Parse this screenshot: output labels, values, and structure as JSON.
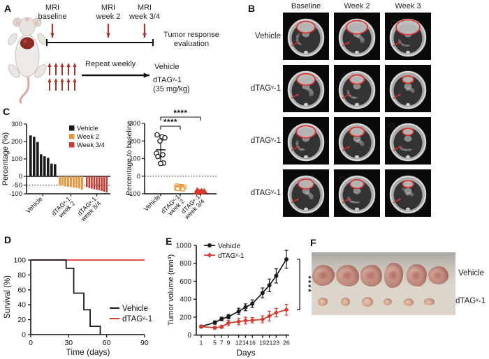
{
  "colors": {
    "text": "#1a1a1a",
    "vehicle_black": "#1a1a1a",
    "week2_orange": "#E8973B",
    "week34_red": "#C43D32",
    "dtag_red": "#D6372E",
    "survival_red": "#E03A2F",
    "schematic_arrow_red": "#A6342C",
    "mri_outline_red": "#E03131"
  },
  "panel_a": {
    "label": "A",
    "mri_timepoints": [
      [
        "MRI",
        "baseline"
      ],
      [
        "MRI",
        "week 2"
      ],
      [
        "MRI",
        "week 3/4"
      ]
    ],
    "evaluation_line1": "Tumor response",
    "evaluation_line2": "evaluation",
    "repeat_label": "Repeat weekly",
    "treatments": [
      "Vehicle",
      "dTAGᵛ-1"
    ],
    "dose": "(35 mg/kg)"
  },
  "panel_b": {
    "label": "B",
    "col_headers": [
      "Baseline",
      "Week 2",
      "Week 3"
    ],
    "rows": [
      {
        "label": "Vehicle",
        "tumor_scales": [
          1.0,
          1.15,
          1.3
        ]
      },
      {
        "label": "dTAGᵛ-1",
        "tumor_scales": [
          1.0,
          0.8,
          0.62
        ]
      },
      {
        "label": "dTAGᵛ-1",
        "tumor_scales": [
          1.05,
          0.8,
          0.6
        ]
      },
      {
        "label": "dTAGᵛ-1",
        "tumor_scales": [
          0.85,
          0.75,
          0.6
        ]
      }
    ]
  },
  "panel_c": {
    "label": "C"
  },
  "panel_d": {
    "label": "D"
  },
  "panel_e": {
    "label": "E"
  },
  "panel_f": {
    "label": "F",
    "row_labels": [
      "Vehicle",
      "dTAGᵛ-1"
    ],
    "large_tumors": [
      [
        32,
        30
      ],
      [
        33,
        31
      ],
      [
        31,
        31
      ],
      [
        27,
        36
      ],
      [
        29,
        32
      ],
      [
        29,
        26
      ]
    ],
    "small_tumors": [
      [
        14,
        12
      ],
      [
        13,
        12
      ],
      [
        16,
        14
      ],
      [
        12,
        10
      ],
      [
        14,
        11
      ],
      [
        15,
        10
      ]
    ]
  },
  "chart_data": [
    {
      "id": "waterfall",
      "type": "bar",
      "ylabel": "Percentage (%)",
      "ylim": [
        -100,
        300
      ],
      "yticks": [
        300,
        200,
        100,
        0,
        -50,
        -100
      ],
      "reference_line": -50,
      "grid": false,
      "legend_position": "inside-top-right",
      "legend": [
        {
          "label": "Vehicle",
          "color": "#1a1a1a"
        },
        {
          "label": "Week 2",
          "color": "#E8973B"
        },
        {
          "label": "Week 3/4",
          "color": "#C43D32"
        }
      ],
      "groups": [
        {
          "label": [
            "Vehicle"
          ],
          "color": "#1a1a1a",
          "values": [
            235,
            227,
            197,
            127,
            115,
            106,
            73,
            70
          ]
        },
        {
          "label": [
            "dTAGᵛ-1",
            "week 2"
          ],
          "color": "#E8973B",
          "values": [
            -52,
            -55,
            -58,
            -60,
            -62,
            -64,
            -66,
            -69,
            -76
          ]
        },
        {
          "label": [
            "dTAGᵛ-1",
            "week 3/4"
          ],
          "color": "#C43D32",
          "values": [
            -60,
            -67,
            -71,
            -74,
            -77,
            -80,
            -84,
            -88,
            -93
          ]
        }
      ]
    },
    {
      "id": "response-scatter",
      "type": "scatter",
      "ylabel": "Percentage to baseline",
      "ylim": [
        -100,
        300
      ],
      "yticks": [
        300,
        200,
        100,
        0,
        -100
      ],
      "reference_line": 0,
      "groups": [
        {
          "label": [
            "Vehicle"
          ],
          "marker": "circle-open",
          "color": "#1a1a1a",
          "values": [
            235,
            224,
            218,
            200,
            130,
            122,
            112,
            75,
            72
          ],
          "mean": 150,
          "err_high": 205,
          "err_low": 78
        },
        {
          "label": [
            "dTAGᵛ-1",
            "week 2"
          ],
          "marker": "square-open",
          "color": "#E8973B",
          "values": [
            -55,
            -58,
            -61,
            -63,
            -66,
            -68,
            -71,
            -74
          ]
        },
        {
          "label": [
            "dTAGᵛ-1",
            "week 3/4"
          ],
          "marker": "triangle-filled",
          "color": "#D6372E",
          "values": [
            -79,
            -83,
            -85,
            -87,
            -89,
            -91,
            -94
          ]
        }
      ],
      "significance": [
        {
          "from": 0,
          "to": 1,
          "label": "****"
        },
        {
          "from": 0,
          "to": 2,
          "label": "****"
        }
      ]
    },
    {
      "id": "survival",
      "type": "line",
      "xlabel": "Time (days)",
      "ylabel": "Survival (%)",
      "xlim": [
        0,
        90
      ],
      "ylim": [
        0,
        100
      ],
      "xticks": [
        0,
        30,
        60,
        90
      ],
      "yticks": [
        0,
        20,
        40,
        60,
        80,
        100
      ],
      "legend_position": "inside-right",
      "series": [
        {
          "name": "Vehicle",
          "color": "#1a1a1a",
          "step": true,
          "points": [
            [
              0,
              100
            ],
            [
              28,
              100
            ],
            [
              28,
              88.9
            ],
            [
              34,
              88.9
            ],
            [
              34,
              55.6
            ],
            [
              42,
              55.6
            ],
            [
              42,
              33.3
            ],
            [
              47,
              33.3
            ],
            [
              47,
              11.1
            ],
            [
              55,
              11.1
            ],
            [
              55,
              0
            ]
          ]
        },
        {
          "name": "dTAGᵛ-1",
          "color": "#E03A2F",
          "step": true,
          "points": [
            [
              0,
              100
            ],
            [
              90,
              100
            ]
          ]
        }
      ]
    },
    {
      "id": "tumor-volume",
      "type": "line",
      "xlabel": "Days",
      "ylabel": "Tumor volume (mm³)",
      "xlim": [
        1,
        26
      ],
      "ylim": [
        0,
        1000
      ],
      "xticks": [
        1,
        5,
        7,
        9,
        12,
        14,
        16,
        19,
        21,
        23,
        26
      ],
      "yticks": [
        0,
        200,
        400,
        600,
        800,
        1000
      ],
      "x": [
        1,
        5,
        7,
        9,
        12,
        14,
        16,
        19,
        21,
        23,
        26
      ],
      "legend_position": "inside-top-left",
      "significance": "****",
      "series": [
        {
          "name": "Vehicle",
          "color": "#1a1a1a",
          "marker": "circle",
          "values": [
            95,
            140,
            180,
            205,
            265,
            310,
            350,
            470,
            555,
            660,
            845
          ],
          "errors": [
            12,
            18,
            20,
            25,
            35,
            38,
            42,
            55,
            70,
            80,
            100
          ]
        },
        {
          "name": "dTAGᵛ-1",
          "color": "#D6372E",
          "marker": "diamond",
          "values": [
            95,
            82,
            92,
            135,
            150,
            162,
            165,
            175,
            212,
            250,
            282
          ],
          "errors": [
            10,
            14,
            16,
            28,
            35,
            38,
            30,
            38,
            55,
            48,
            60
          ]
        }
      ]
    }
  ]
}
